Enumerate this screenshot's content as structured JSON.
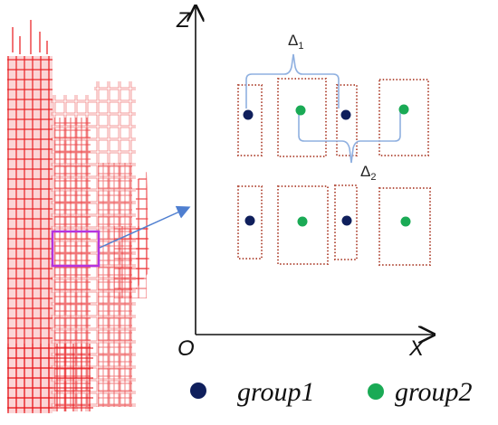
{
  "axes": {
    "z_label": "Z",
    "x_label": "X",
    "origin_label": "O"
  },
  "gap_labels": [
    {
      "symbol": "Δ",
      "subscript": "1"
    },
    {
      "symbol": "Δ",
      "subscript": "2"
    }
  ],
  "legend": [
    {
      "label": "group1",
      "color": "#0f1f5c"
    },
    {
      "label": "group2",
      "color": "#1aaa55"
    }
  ],
  "colors": {
    "point_cloud": "#e8161a",
    "window_outline": "#b85a4a",
    "highlight_box": "#b433e0",
    "arrow": "#4f7fd0",
    "bracket": "#8fb0e0",
    "axis": "#111111"
  },
  "icons": {
    "zoom_arrow": "arrow-right-icon"
  }
}
